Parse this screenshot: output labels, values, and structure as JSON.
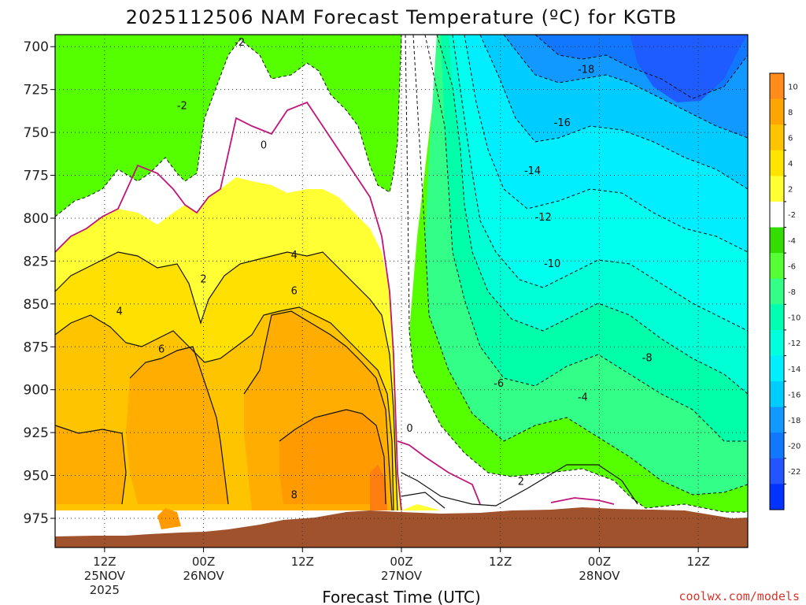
{
  "chart_data": {
    "type": "heatmap",
    "title": "2025112506 NAM Forecast Temperature (ºC) for KGTB",
    "xlabel": "Forecast Time (UTC)",
    "ylabel": "",
    "y_axis": {
      "ticks": [
        700,
        725,
        750,
        775,
        800,
        825,
        850,
        875,
        900,
        925,
        950,
        975
      ],
      "range": [
        693,
        992
      ],
      "inverted": true,
      "grid": "dotted"
    },
    "x_axis": {
      "ticks": [
        {
          "hours": 6,
          "line1": "12Z",
          "line2": "25NOV",
          "line3": "2025"
        },
        {
          "hours": 18,
          "line1": "00Z",
          "line2": "26NOV",
          "line3": ""
        },
        {
          "hours": 30,
          "line1": "12Z",
          "line2": "",
          "line3": ""
        },
        {
          "hours": 42,
          "line1": "00Z",
          "line2": "27NOV",
          "line3": ""
        },
        {
          "hours": 54,
          "line1": "12Z",
          "line2": "",
          "line3": ""
        },
        {
          "hours": 66,
          "line1": "00Z",
          "line2": "28NOV",
          "line3": ""
        },
        {
          "hours": 78,
          "line1": "12Z",
          "line2": "",
          "line3": ""
        }
      ],
      "range": [
        0,
        84
      ],
      "grid": "dotted"
    },
    "colorbar": {
      "ticks": [
        10,
        8,
        6,
        4,
        2,
        -2,
        -4,
        -6,
        -8,
        -10,
        -12,
        -14,
        -16,
        -18,
        -20,
        -22
      ],
      "colors": [
        "#ff8c1a",
        "#ffa500",
        "#ffc400",
        "#ffe400",
        "#ffff33",
        "#ffffff",
        "#33dd00",
        "#55ff33",
        "#33ff88",
        "#00ffb0",
        "#00ffdd",
        "#00eeff",
        "#00ccff",
        "#1199ff",
        "#1177ff",
        "#2255ff",
        "#0033ff"
      ]
    },
    "contour_labels": [
      {
        "text": "-2",
        "h": 22.4,
        "p": 698
      },
      {
        "text": "-2",
        "h": 15.4,
        "p": 735
      },
      {
        "text": "0",
        "h": 25.3,
        "p": 758
      },
      {
        "text": "2",
        "h": 18,
        "p": 836
      },
      {
        "text": "4",
        "h": 29,
        "p": 822
      },
      {
        "text": "4",
        "h": 7.8,
        "p": 855
      },
      {
        "text": "6",
        "h": 29,
        "p": 843
      },
      {
        "text": "6",
        "h": 12.9,
        "p": 877
      },
      {
        "text": "8",
        "h": 29,
        "p": 962
      },
      {
        "text": "0",
        "h": 43,
        "p": 923
      },
      {
        "text": "2",
        "h": 56.5,
        "p": 954
      },
      {
        "text": "-4",
        "h": 64,
        "p": 905
      },
      {
        "text": "-6",
        "h": 53.8,
        "p": 897
      },
      {
        "text": "-8",
        "h": 71.8,
        "p": 882
      },
      {
        "text": "-10",
        "h": 60.3,
        "p": 827
      },
      {
        "text": "-12",
        "h": 59.2,
        "p": 800
      },
      {
        "text": "-14",
        "h": 57.9,
        "p": 773
      },
      {
        "text": "-16",
        "h": 61.5,
        "p": 745
      },
      {
        "text": "-18",
        "h": 64.4,
        "p": 714
      }
    ],
    "terrain_label": "",
    "grid": true,
    "legend": "colorbar at right"
  },
  "credit": "coolwx.com/models"
}
